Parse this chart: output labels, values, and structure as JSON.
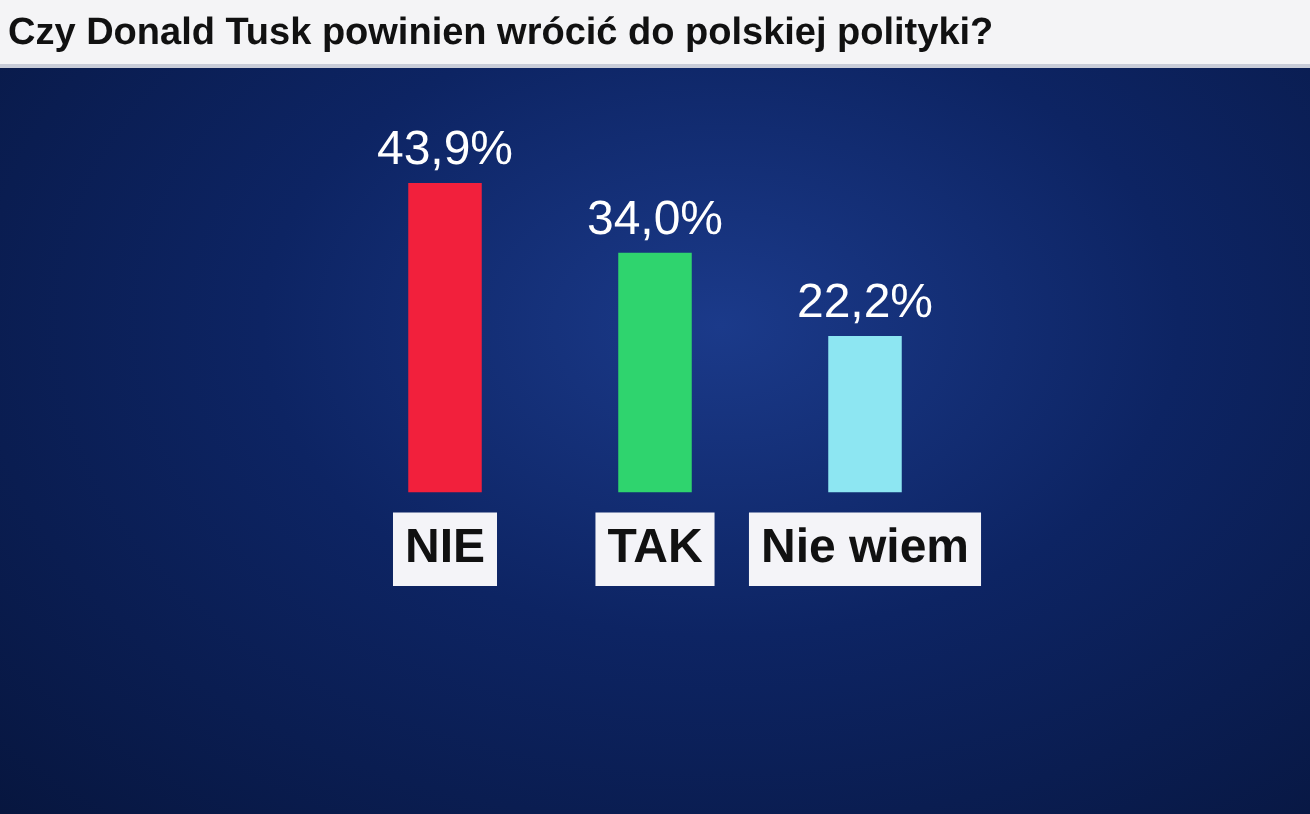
{
  "chart_data": {
    "type": "bar",
    "title": "Czy Donald Tusk powinien wrócić do polskiej polityki?",
    "categories": [
      "NIE",
      "TAK",
      "Nie wiem"
    ],
    "values": [
      43.9,
      34.0,
      22.2
    ],
    "colors": [
      "#f2203c",
      "#2fd46e",
      "#8de6f2"
    ],
    "value_labels": [
      "43,9%",
      "34,0%",
      "22,2%"
    ]
  }
}
